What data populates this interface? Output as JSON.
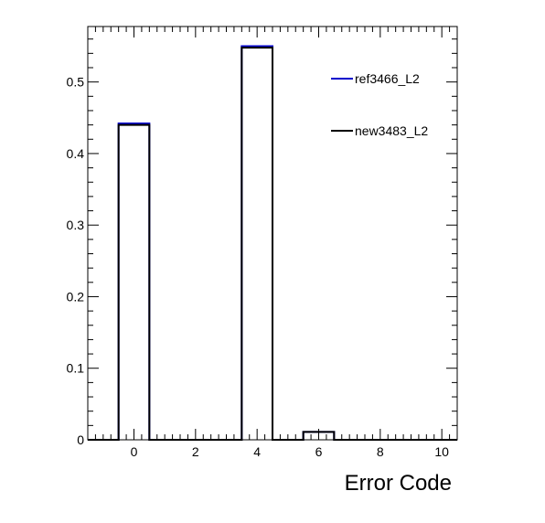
{
  "chart_data": {
    "type": "bar",
    "style": "step-histogram",
    "xlabel": "Error Code",
    "ylabel": "",
    "xlim": [
      -1.5,
      10.5
    ],
    "ylim": [
      0,
      0.5775
    ],
    "x_ticks": [
      0,
      2,
      4,
      6,
      8,
      10
    ],
    "y_ticks": [
      0,
      0.1,
      0.2,
      0.3,
      0.4,
      0.5
    ],
    "bin_edges": [
      -1.5,
      -0.5,
      0.5,
      1.5,
      2.5,
      3.5,
      4.5,
      5.5,
      6.5,
      7.5,
      8.5,
      9.5,
      10.5
    ],
    "grid": false,
    "legend_position": "top-right",
    "series": [
      {
        "name": "ref3466_L2",
        "color": "#0000cc",
        "values": [
          0,
          0.442,
          0,
          0,
          0,
          0.55,
          0,
          0.011,
          0,
          0,
          0,
          0
        ]
      },
      {
        "name": "new3483_L2",
        "color": "#000000",
        "values": [
          0,
          0.44,
          0,
          0,
          0,
          0.548,
          0,
          0.011,
          0,
          0,
          0,
          0
        ]
      }
    ]
  }
}
